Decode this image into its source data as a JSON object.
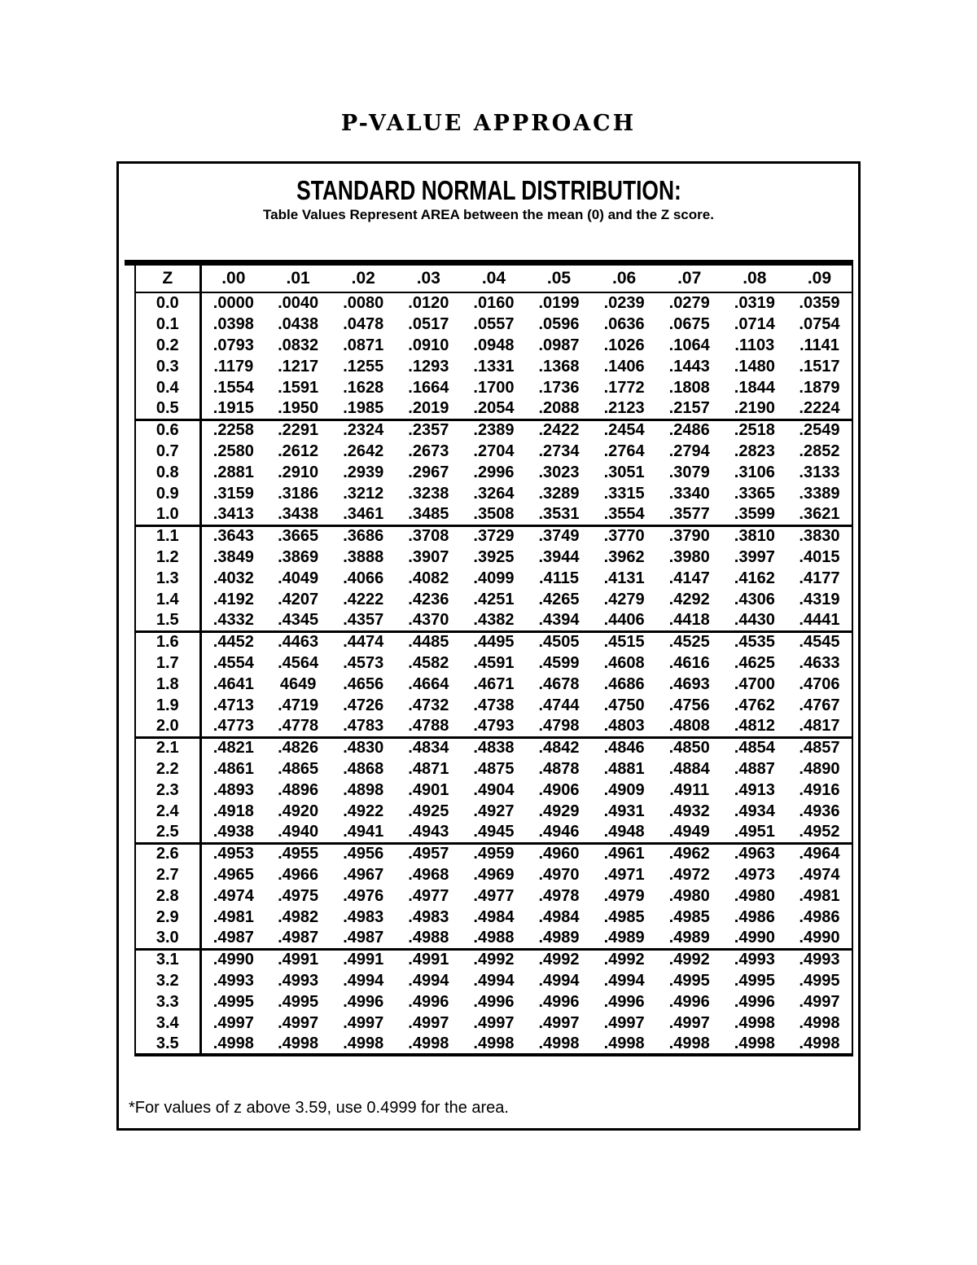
{
  "title": "P-VALUE APPROACH",
  "box": {
    "heading": "STANDARD NORMAL DISTRIBUTION:",
    "subheading": "Table Values Represent AREA between the mean (0) and the Z score."
  },
  "table": {
    "col_headers": [
      "Z",
      ".00",
      ".01",
      ".02",
      ".03",
      ".04",
      ".05",
      ".06",
      ".07",
      ".08",
      ".09"
    ],
    "groups": [
      [
        {
          "z": "0.0",
          "values": [
            ".0000",
            ".0040",
            ".0080",
            ".0120",
            ".0160",
            ".0199",
            ".0239",
            ".0279",
            ".0319",
            ".0359"
          ]
        },
        {
          "z": "0.1",
          "values": [
            ".0398",
            ".0438",
            ".0478",
            ".0517",
            ".0557",
            ".0596",
            ".0636",
            ".0675",
            ".0714",
            ".0754"
          ]
        },
        {
          "z": "0.2",
          "values": [
            ".0793",
            ".0832",
            ".0871",
            ".0910",
            ".0948",
            ".0987",
            ".1026",
            ".1064",
            ".1103",
            ".1141"
          ]
        },
        {
          "z": "0.3",
          "values": [
            ".1179",
            ".1217",
            ".1255",
            ".1293",
            ".1331",
            ".1368",
            ".1406",
            ".1443",
            ".1480",
            ".1517"
          ]
        },
        {
          "z": "0.4",
          "values": [
            ".1554",
            ".1591",
            ".1628",
            ".1664",
            ".1700",
            ".1736",
            ".1772",
            ".1808",
            ".1844",
            ".1879"
          ]
        },
        {
          "z": "0.5",
          "values": [
            ".1915",
            ".1950",
            ".1985",
            ".2019",
            ".2054",
            ".2088",
            ".2123",
            ".2157",
            ".2190",
            ".2224"
          ]
        }
      ],
      [
        {
          "z": "0.6",
          "values": [
            ".2258",
            ".2291",
            ".2324",
            ".2357",
            ".2389",
            ".2422",
            ".2454",
            ".2486",
            ".2518",
            ".2549"
          ]
        },
        {
          "z": "0.7",
          "values": [
            ".2580",
            ".2612",
            ".2642",
            ".2673",
            ".2704",
            ".2734",
            ".2764",
            ".2794",
            ".2823",
            ".2852"
          ]
        },
        {
          "z": "0.8",
          "values": [
            ".2881",
            ".2910",
            ".2939",
            ".2967",
            ".2996",
            ".3023",
            ".3051",
            ".3079",
            ".3106",
            ".3133"
          ]
        },
        {
          "z": "0.9",
          "values": [
            ".3159",
            ".3186",
            ".3212",
            ".3238",
            ".3264",
            ".3289",
            ".3315",
            ".3340",
            ".3365",
            ".3389"
          ]
        },
        {
          "z": "1.0",
          "values": [
            ".3413",
            ".3438",
            ".3461",
            ".3485",
            ".3508",
            ".3531",
            ".3554",
            ".3577",
            ".3599",
            ".3621"
          ]
        }
      ],
      [
        {
          "z": "1.1",
          "values": [
            ".3643",
            ".3665",
            ".3686",
            ".3708",
            ".3729",
            ".3749",
            ".3770",
            ".3790",
            ".3810",
            ".3830"
          ]
        },
        {
          "z": "1.2",
          "values": [
            ".3849",
            ".3869",
            ".3888",
            ".3907",
            ".3925",
            ".3944",
            ".3962",
            ".3980",
            ".3997",
            ".4015"
          ]
        },
        {
          "z": "1.3",
          "values": [
            ".4032",
            ".4049",
            ".4066",
            ".4082",
            ".4099",
            ".4115",
            ".4131",
            ".4147",
            ".4162",
            ".4177"
          ]
        },
        {
          "z": "1.4",
          "values": [
            ".4192",
            ".4207",
            ".4222",
            ".4236",
            ".4251",
            ".4265",
            ".4279",
            ".4292",
            ".4306",
            ".4319"
          ]
        },
        {
          "z": "1.5",
          "values": [
            ".4332",
            ".4345",
            ".4357",
            ".4370",
            ".4382",
            ".4394",
            ".4406",
            ".4418",
            ".4430",
            ".4441"
          ]
        }
      ],
      [
        {
          "z": "1.6",
          "values": [
            ".4452",
            ".4463",
            ".4474",
            ".4485",
            ".4495",
            ".4505",
            ".4515",
            ".4525",
            ".4535",
            ".4545"
          ]
        },
        {
          "z": "1.7",
          "values": [
            ".4554",
            ".4564",
            ".4573",
            ".4582",
            ".4591",
            ".4599",
            ".4608",
            ".4616",
            ".4625",
            ".4633"
          ]
        },
        {
          "z": "1.8",
          "values": [
            ".4641",
            "4649",
            ".4656",
            ".4664",
            ".4671",
            ".4678",
            ".4686",
            ".4693",
            ".4700",
            ".4706"
          ]
        },
        {
          "z": "1.9",
          "values": [
            ".4713",
            ".4719",
            ".4726",
            ".4732",
            ".4738",
            ".4744",
            ".4750",
            ".4756",
            ".4762",
            ".4767"
          ]
        },
        {
          "z": "2.0",
          "values": [
            ".4773",
            ".4778",
            ".4783",
            ".4788",
            ".4793",
            ".4798",
            ".4803",
            ".4808",
            ".4812",
            ".4817"
          ]
        }
      ],
      [
        {
          "z": "2.1",
          "values": [
            ".4821",
            ".4826",
            ".4830",
            ".4834",
            ".4838",
            ".4842",
            ".4846",
            ".4850",
            ".4854",
            ".4857"
          ]
        },
        {
          "z": "2.2",
          "values": [
            ".4861",
            ".4865",
            ".4868",
            ".4871",
            ".4875",
            ".4878",
            ".4881",
            ".4884",
            ".4887",
            ".4890"
          ]
        },
        {
          "z": "2.3",
          "values": [
            ".4893",
            ".4896",
            ".4898",
            ".4901",
            ".4904",
            ".4906",
            ".4909",
            ".4911",
            ".4913",
            ".4916"
          ]
        },
        {
          "z": "2.4",
          "values": [
            ".4918",
            ".4920",
            ".4922",
            ".4925",
            ".4927",
            ".4929",
            ".4931",
            ".4932",
            ".4934",
            ".4936"
          ]
        },
        {
          "z": "2.5",
          "values": [
            ".4938",
            ".4940",
            ".4941",
            ".4943",
            ".4945",
            ".4946",
            ".4948",
            ".4949",
            ".4951",
            ".4952"
          ]
        }
      ],
      [
        {
          "z": "2.6",
          "values": [
            ".4953",
            ".4955",
            ".4956",
            ".4957",
            ".4959",
            ".4960",
            ".4961",
            ".4962",
            ".4963",
            ".4964"
          ]
        },
        {
          "z": "2.7",
          "values": [
            ".4965",
            ".4966",
            ".4967",
            ".4968",
            ".4969",
            ".4970",
            ".4971",
            ".4972",
            ".4973",
            ".4974"
          ]
        },
        {
          "z": "2.8",
          "values": [
            ".4974",
            ".4975",
            ".4976",
            ".4977",
            ".4977",
            ".4978",
            ".4979",
            ".4980",
            ".4980",
            ".4981"
          ]
        },
        {
          "z": "2.9",
          "values": [
            ".4981",
            ".4982",
            ".4983",
            ".4983",
            ".4984",
            ".4984",
            ".4985",
            ".4985",
            ".4986",
            ".4986"
          ]
        },
        {
          "z": "3.0",
          "values": [
            ".4987",
            ".4987",
            ".4987",
            ".4988",
            ".4988",
            ".4989",
            ".4989",
            ".4989",
            ".4990",
            ".4990"
          ]
        }
      ],
      [
        {
          "z": "3.1",
          "values": [
            ".4990",
            ".4991",
            ".4991",
            ".4991",
            ".4992",
            ".4992",
            ".4992",
            ".4992",
            ".4993",
            ".4993"
          ]
        },
        {
          "z": "3.2",
          "values": [
            ".4993",
            ".4993",
            ".4994",
            ".4994",
            ".4994",
            ".4994",
            ".4994",
            ".4995",
            ".4995",
            ".4995"
          ]
        },
        {
          "z": "3.3",
          "values": [
            ".4995",
            ".4995",
            ".4996",
            ".4996",
            ".4996",
            ".4996",
            ".4996",
            ".4996",
            ".4996",
            ".4997"
          ]
        },
        {
          "z": "3.4",
          "values": [
            ".4997",
            ".4997",
            ".4997",
            ".4997",
            ".4997",
            ".4997",
            ".4997",
            ".4997",
            ".4998",
            ".4998"
          ]
        },
        {
          "z": "3.5",
          "values": [
            ".4998",
            ".4998",
            ".4998",
            ".4998",
            ".4998",
            ".4998",
            ".4998",
            ".4998",
            ".4998",
            ".4998"
          ]
        }
      ]
    ]
  },
  "footnote": "*For values of z above 3.59, use 0.4999 for the area.",
  "colors": {
    "ink": "#000000",
    "paper": "#ffffff"
  }
}
